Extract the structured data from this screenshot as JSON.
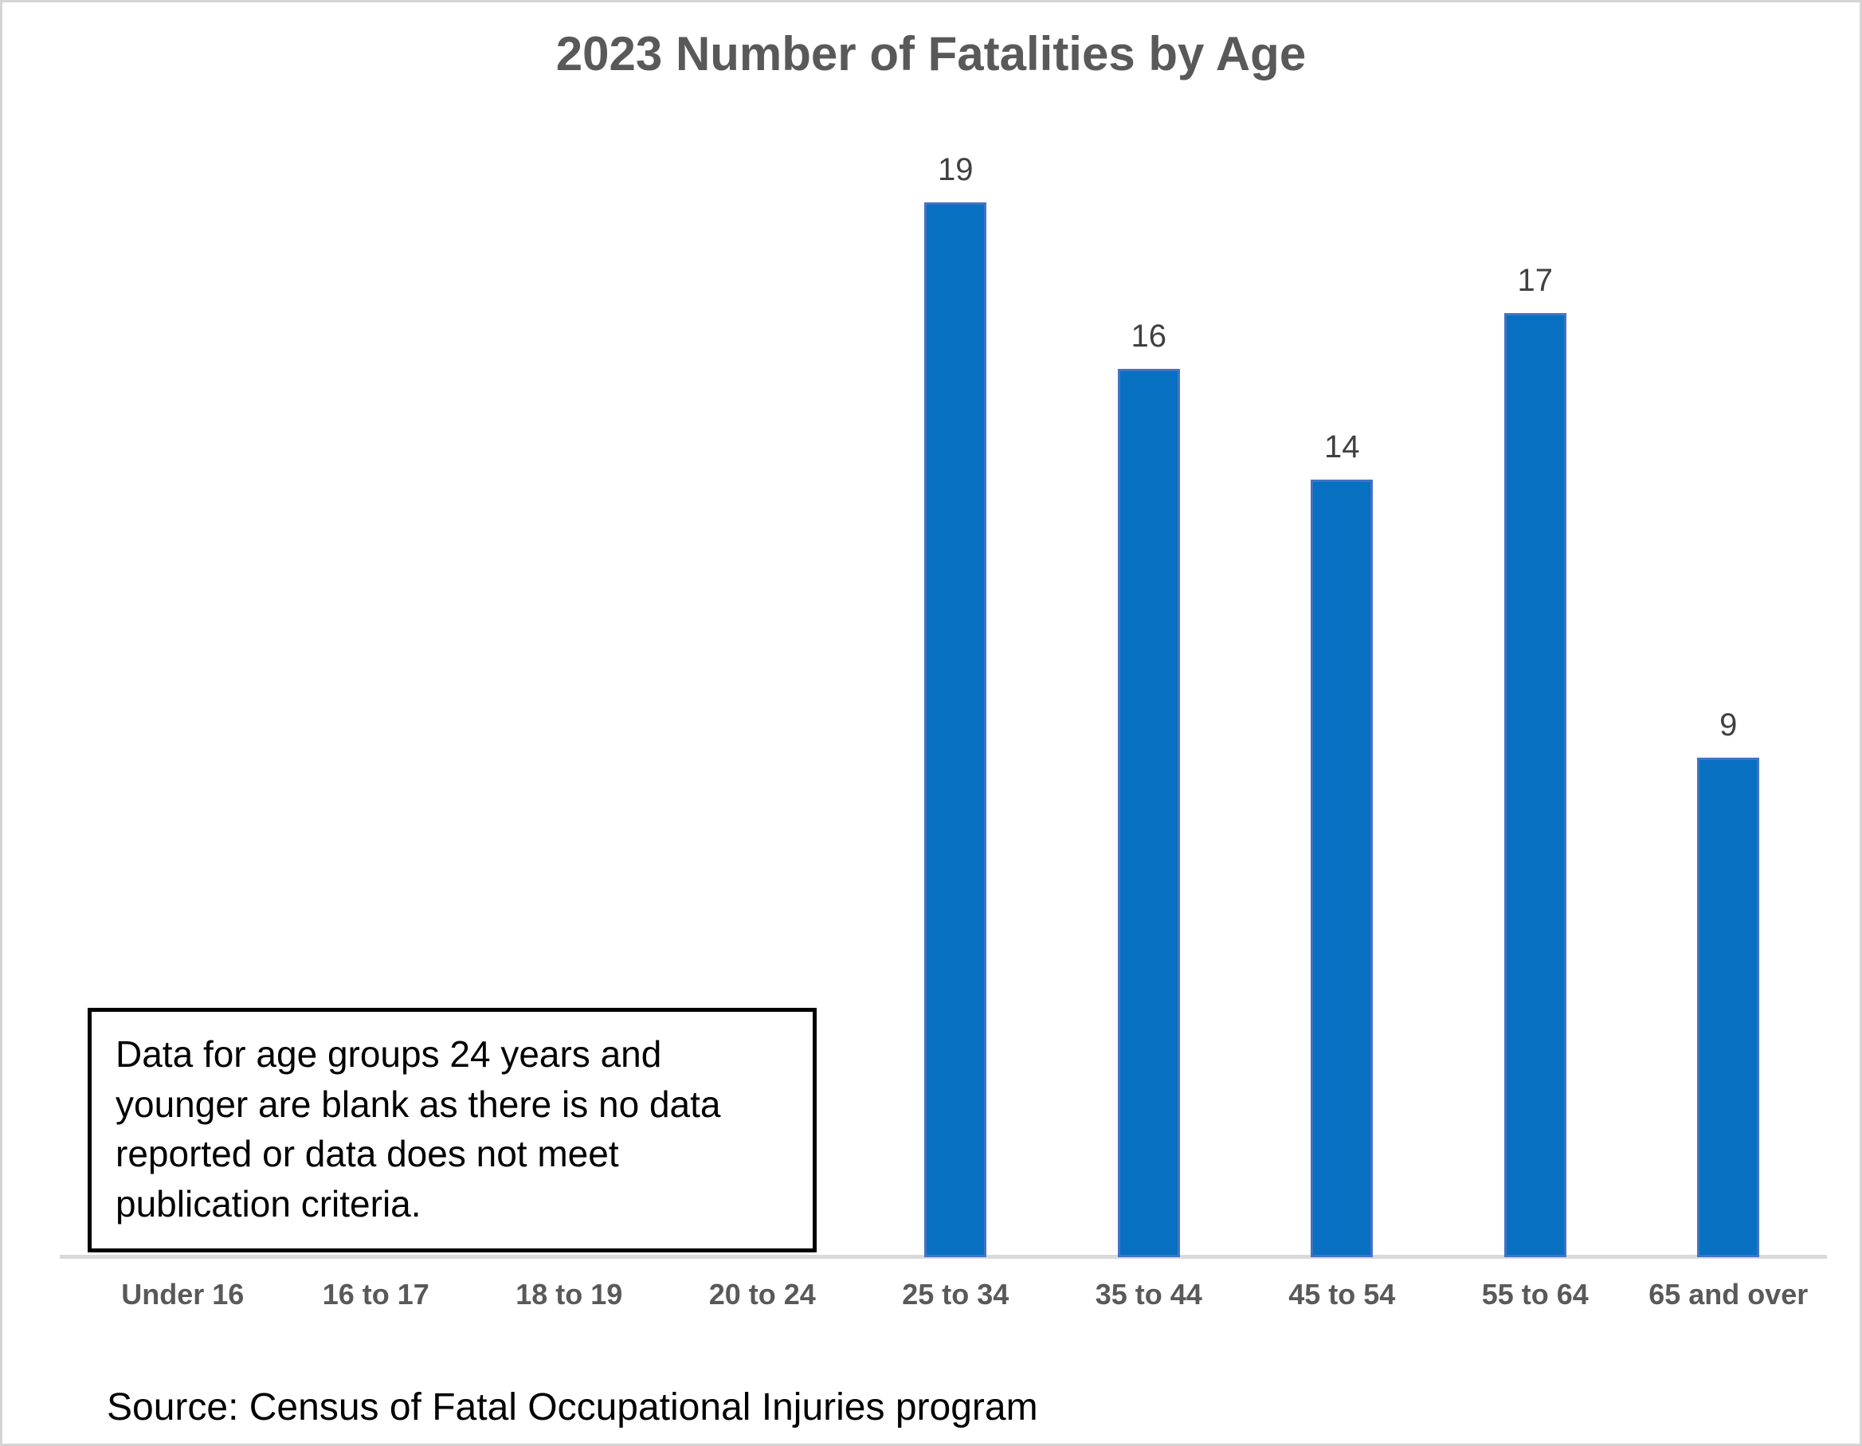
{
  "chart_data": {
    "type": "bar",
    "title": "2023 Number of Fatalities by Age",
    "categories": [
      "Under 16",
      "16 to 17",
      "18 to 19",
      "20 to 24",
      "25 to 34",
      "35 to 44",
      "45 to 54",
      "55 to 64",
      "65 and over"
    ],
    "values": [
      null,
      null,
      null,
      null,
      19,
      16,
      14,
      17,
      9
    ],
    "data_labels": [
      "",
      "",
      "",
      "",
      "19",
      "16",
      "14",
      "17",
      "9"
    ],
    "xlabel": "",
    "ylabel": "",
    "ylim": [
      0,
      19
    ],
    "grid": false,
    "legend_position": "none",
    "y_axis_visible": false,
    "bar_fill_color": "#0770C1",
    "bar_border_color": "#4472C4",
    "value_label_color": "#404040",
    "category_label_color": "#595959",
    "title_color": "#595959",
    "axis_line_color": "#D9D9D9"
  },
  "annotation": {
    "text": "Data for age groups 24 years and younger are blank as there is no data reported or data does not meet publication criteria."
  },
  "source": {
    "text": "Source: Census of Fatal Occupational Injuries program"
  }
}
